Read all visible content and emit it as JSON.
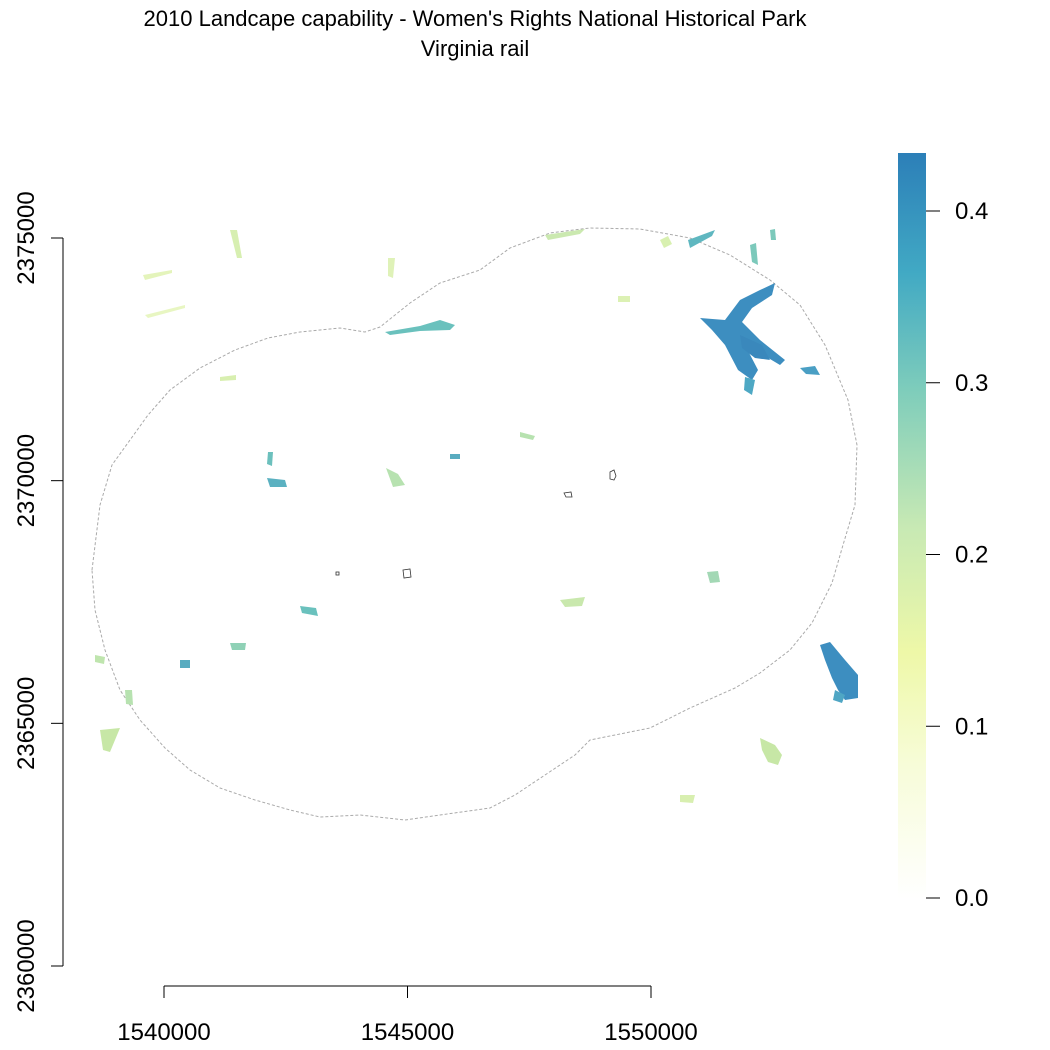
{
  "title": {
    "line1": "2010 Landcape capability - Women's Rights National Historical Park",
    "line2": "Virginia rail"
  },
  "map": {
    "x_axis": {
      "ticks": [
        {
          "value": 1540000,
          "label": "1540000"
        },
        {
          "value": 1545000,
          "label": "1545000"
        },
        {
          "value": 1550000,
          "label": "1550000"
        }
      ]
    },
    "y_axis": {
      "ticks": [
        {
          "value": 2360000,
          "label": "2360000"
        },
        {
          "value": 2365000,
          "label": "2365000"
        },
        {
          "value": 2370000,
          "label": "2370000"
        },
        {
          "value": 2375000,
          "label": "2375000"
        }
      ]
    },
    "legend": {
      "ticks": [
        {
          "value": 0.0,
          "label": "0.0"
        },
        {
          "value": 0.1,
          "label": "0.1"
        },
        {
          "value": 0.2,
          "label": "0.2"
        },
        {
          "value": 0.3,
          "label": "0.3"
        },
        {
          "value": 0.4,
          "label": "0.4"
        }
      ],
      "range": [
        0.0,
        0.43
      ],
      "color_stops": [
        "#ffffff",
        "#f7fcd8",
        "#e9f7a8",
        "#c7e9b4",
        "#7fcdbb",
        "#41b6c4",
        "#2c7fb8"
      ]
    },
    "boundary_color": "#aaaaaa"
  }
}
